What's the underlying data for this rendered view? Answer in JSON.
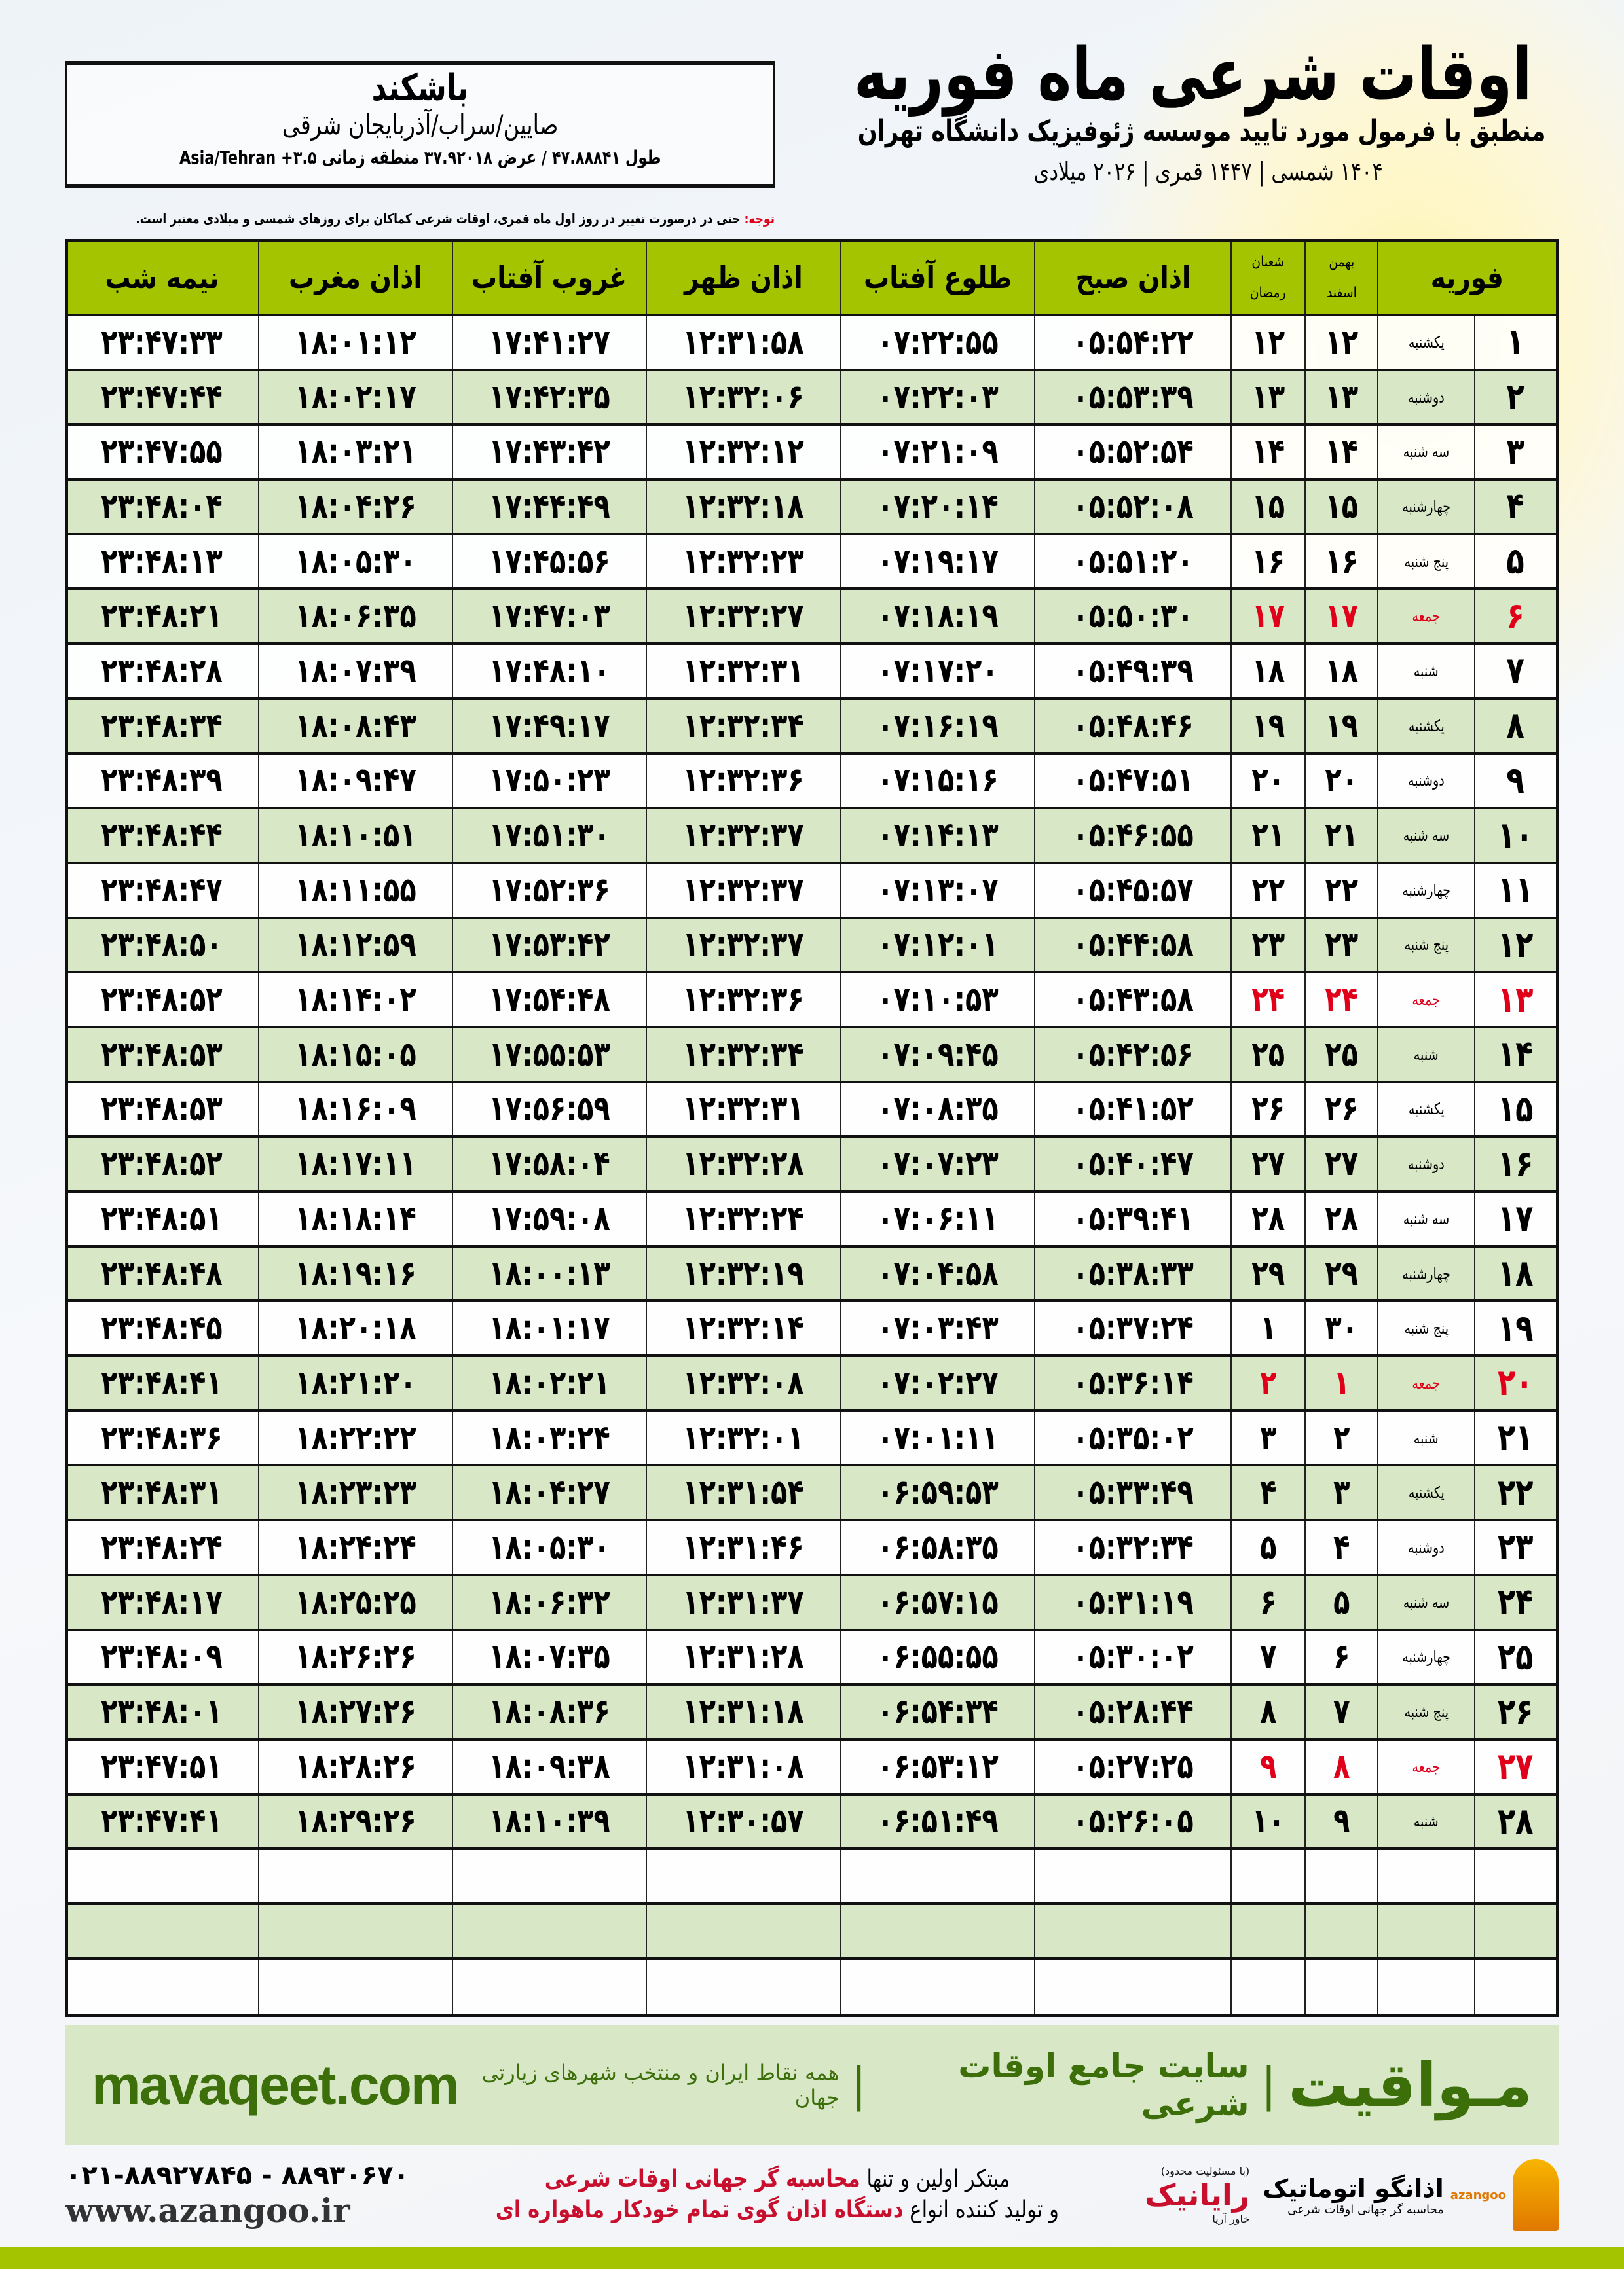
{
  "location": {
    "city": "باشکند",
    "province": "صایین/سراب/آذربایجان شرقی",
    "coordinates": "طول ۴۷.۸۸۸۴۱ / عرض ۳۷.۹۲۰۱۸ منطقه زمانی Asia/Tehran +۳.۵"
  },
  "header": {
    "title": "اوقات شرعی ماه فوریه",
    "subtitle": "منطبق با فرمول مورد تایید موسسه ژئوفیزیک دانشگاه تهران",
    "years": "۱۴۰۴ شمسی | ۱۴۴۷ قمری | ۲۰۲۶ میلادی"
  },
  "note": {
    "label": "توجه:",
    "text": " حتی در درصورت تغییر در روز اول ماه قمری، اوقات شرعی کماکان برای روزهای شمسی و میلادی معتبر است."
  },
  "colors": {
    "header_green": "#a5c400",
    "row_alt": "#d8e8c6",
    "holiday": "#e0001a",
    "brand_green": "#3c6e0a"
  },
  "table": {
    "headers": {
      "month": "فوریه",
      "bahman": "بهمن",
      "esfand": "اسفند",
      "shaban": "شعبان",
      "ramadan": "رمضان",
      "fajr": "اذان صبح",
      "sunrise": "طلوع آفتاب",
      "dhuhr": "اذان ظهر",
      "sunset": "غروب آفتاب",
      "maghrib": "اذان مغرب",
      "midnight": "نیمه شب"
    },
    "rows": [
      {
        "day": "۱",
        "weekday": "یکشنبه",
        "shamsi": "۱۲",
        "qamari": "۱۲",
        "fajr": "۰۵:۵۴:۲۲",
        "sunrise": "۰۷:۲۲:۵۵",
        "dhuhr": "۱۲:۳۱:۵۸",
        "sunset": "۱۷:۴۱:۲۷",
        "maghrib": "۱۸:۰۱:۱۲",
        "midnight": "۲۳:۴۷:۳۳",
        "holiday": false
      },
      {
        "day": "۲",
        "weekday": "دوشنبه",
        "shamsi": "۱۳",
        "qamari": "۱۳",
        "fajr": "۰۵:۵۳:۳۹",
        "sunrise": "۰۷:۲۲:۰۳",
        "dhuhr": "۱۲:۳۲:۰۶",
        "sunset": "۱۷:۴۲:۳۵",
        "maghrib": "۱۸:۰۲:۱۷",
        "midnight": "۲۳:۴۷:۴۴",
        "holiday": false
      },
      {
        "day": "۳",
        "weekday": "سه شنبه",
        "shamsi": "۱۴",
        "qamari": "۱۴",
        "fajr": "۰۵:۵۲:۵۴",
        "sunrise": "۰۷:۲۱:۰۹",
        "dhuhr": "۱۲:۳۲:۱۲",
        "sunset": "۱۷:۴۳:۴۲",
        "maghrib": "۱۸:۰۳:۲۱",
        "midnight": "۲۳:۴۷:۵۵",
        "holiday": false
      },
      {
        "day": "۴",
        "weekday": "چهارشنبه",
        "shamsi": "۱۵",
        "qamari": "۱۵",
        "fajr": "۰۵:۵۲:۰۸",
        "sunrise": "۰۷:۲۰:۱۴",
        "dhuhr": "۱۲:۳۲:۱۸",
        "sunset": "۱۷:۴۴:۴۹",
        "maghrib": "۱۸:۰۴:۲۶",
        "midnight": "۲۳:۴۸:۰۴",
        "holiday": false
      },
      {
        "day": "۵",
        "weekday": "پنج شنبه",
        "shamsi": "۱۶",
        "qamari": "۱۶",
        "fajr": "۰۵:۵۱:۲۰",
        "sunrise": "۰۷:۱۹:۱۷",
        "dhuhr": "۱۲:۳۲:۲۳",
        "sunset": "۱۷:۴۵:۵۶",
        "maghrib": "۱۸:۰۵:۳۰",
        "midnight": "۲۳:۴۸:۱۳",
        "holiday": false
      },
      {
        "day": "۶",
        "weekday": "جمعه",
        "shamsi": "۱۷",
        "qamari": "۱۷",
        "fajr": "۰۵:۵۰:۳۰",
        "sunrise": "۰۷:۱۸:۱۹",
        "dhuhr": "۱۲:۳۲:۲۷",
        "sunset": "۱۷:۴۷:۰۳",
        "maghrib": "۱۸:۰۶:۳۵",
        "midnight": "۲۳:۴۸:۲۱",
        "holiday": true
      },
      {
        "day": "۷",
        "weekday": "شنبه",
        "shamsi": "۱۸",
        "qamari": "۱۸",
        "fajr": "۰۵:۴۹:۳۹",
        "sunrise": "۰۷:۱۷:۲۰",
        "dhuhr": "۱۲:۳۲:۳۱",
        "sunset": "۱۷:۴۸:۱۰",
        "maghrib": "۱۸:۰۷:۳۹",
        "midnight": "۲۳:۴۸:۲۸",
        "holiday": false
      },
      {
        "day": "۸",
        "weekday": "یکشنبه",
        "shamsi": "۱۹",
        "qamari": "۱۹",
        "fajr": "۰۵:۴۸:۴۶",
        "sunrise": "۰۷:۱۶:۱۹",
        "dhuhr": "۱۲:۳۲:۳۴",
        "sunset": "۱۷:۴۹:۱۷",
        "maghrib": "۱۸:۰۸:۴۳",
        "midnight": "۲۳:۴۸:۳۴",
        "holiday": false
      },
      {
        "day": "۹",
        "weekday": "دوشنبه",
        "shamsi": "۲۰",
        "qamari": "۲۰",
        "fajr": "۰۵:۴۷:۵۱",
        "sunrise": "۰۷:۱۵:۱۶",
        "dhuhr": "۱۲:۳۲:۳۶",
        "sunset": "۱۷:۵۰:۲۳",
        "maghrib": "۱۸:۰۹:۴۷",
        "midnight": "۲۳:۴۸:۳۹",
        "holiday": false
      },
      {
        "day": "۱۰",
        "weekday": "سه شنبه",
        "shamsi": "۲۱",
        "qamari": "۲۱",
        "fajr": "۰۵:۴۶:۵۵",
        "sunrise": "۰۷:۱۴:۱۳",
        "dhuhr": "۱۲:۳۲:۳۷",
        "sunset": "۱۷:۵۱:۳۰",
        "maghrib": "۱۸:۱۰:۵۱",
        "midnight": "۲۳:۴۸:۴۴",
        "holiday": false
      },
      {
        "day": "۱۱",
        "weekday": "چهارشنبه",
        "shamsi": "۲۲",
        "qamari": "۲۲",
        "fajr": "۰۵:۴۵:۵۷",
        "sunrise": "۰۷:۱۳:۰۷",
        "dhuhr": "۱۲:۳۲:۳۷",
        "sunset": "۱۷:۵۲:۳۶",
        "maghrib": "۱۸:۱۱:۵۵",
        "midnight": "۲۳:۴۸:۴۷",
        "holiday": false
      },
      {
        "day": "۱۲",
        "weekday": "پنج شنبه",
        "shamsi": "۲۳",
        "qamari": "۲۳",
        "fajr": "۰۵:۴۴:۵۸",
        "sunrise": "۰۷:۱۲:۰۱",
        "dhuhr": "۱۲:۳۲:۳۷",
        "sunset": "۱۷:۵۳:۴۲",
        "maghrib": "۱۸:۱۲:۵۹",
        "midnight": "۲۳:۴۸:۵۰",
        "holiday": false
      },
      {
        "day": "۱۳",
        "weekday": "جمعه",
        "shamsi": "۲۴",
        "qamari": "۲۴",
        "fajr": "۰۵:۴۳:۵۸",
        "sunrise": "۰۷:۱۰:۵۳",
        "dhuhr": "۱۲:۳۲:۳۶",
        "sunset": "۱۷:۵۴:۴۸",
        "maghrib": "۱۸:۱۴:۰۲",
        "midnight": "۲۳:۴۸:۵۲",
        "holiday": true
      },
      {
        "day": "۱۴",
        "weekday": "شنبه",
        "shamsi": "۲۵",
        "qamari": "۲۵",
        "fajr": "۰۵:۴۲:۵۶",
        "sunrise": "۰۷:۰۹:۴۵",
        "dhuhr": "۱۲:۳۲:۳۴",
        "sunset": "۱۷:۵۵:۵۳",
        "maghrib": "۱۸:۱۵:۰۵",
        "midnight": "۲۳:۴۸:۵۳",
        "holiday": false
      },
      {
        "day": "۱۵",
        "weekday": "یکشنبه",
        "shamsi": "۲۶",
        "qamari": "۲۶",
        "fajr": "۰۵:۴۱:۵۲",
        "sunrise": "۰۷:۰۸:۳۵",
        "dhuhr": "۱۲:۳۲:۳۱",
        "sunset": "۱۷:۵۶:۵۹",
        "maghrib": "۱۸:۱۶:۰۹",
        "midnight": "۲۳:۴۸:۵۳",
        "holiday": false
      },
      {
        "day": "۱۶",
        "weekday": "دوشنبه",
        "shamsi": "۲۷",
        "qamari": "۲۷",
        "fajr": "۰۵:۴۰:۴۷",
        "sunrise": "۰۷:۰۷:۲۳",
        "dhuhr": "۱۲:۳۲:۲۸",
        "sunset": "۱۷:۵۸:۰۴",
        "maghrib": "۱۸:۱۷:۱۱",
        "midnight": "۲۳:۴۸:۵۲",
        "holiday": false
      },
      {
        "day": "۱۷",
        "weekday": "سه شنبه",
        "shamsi": "۲۸",
        "qamari": "۲۸",
        "fajr": "۰۵:۳۹:۴۱",
        "sunrise": "۰۷:۰۶:۱۱",
        "dhuhr": "۱۲:۳۲:۲۴",
        "sunset": "۱۷:۵۹:۰۸",
        "maghrib": "۱۸:۱۸:۱۴",
        "midnight": "۲۳:۴۸:۵۱",
        "holiday": false
      },
      {
        "day": "۱۸",
        "weekday": "چهارشنبه",
        "shamsi": "۲۹",
        "qamari": "۲۹",
        "fajr": "۰۵:۳۸:۳۳",
        "sunrise": "۰۷:۰۴:۵۸",
        "dhuhr": "۱۲:۳۲:۱۹",
        "sunset": "۱۸:۰۰:۱۳",
        "maghrib": "۱۸:۱۹:۱۶",
        "midnight": "۲۳:۴۸:۴۸",
        "holiday": false
      },
      {
        "day": "۱۹",
        "weekday": "پنج شنبه",
        "shamsi": "۳۰",
        "qamari": "۱",
        "fajr": "۰۵:۳۷:۲۴",
        "sunrise": "۰۷:۰۳:۴۳",
        "dhuhr": "۱۲:۳۲:۱۴",
        "sunset": "۱۸:۰۱:۱۷",
        "maghrib": "۱۸:۲۰:۱۸",
        "midnight": "۲۳:۴۸:۴۵",
        "holiday": false
      },
      {
        "day": "۲۰",
        "weekday": "جمعه",
        "shamsi": "۱",
        "qamari": "۲",
        "fajr": "۰۵:۳۶:۱۴",
        "sunrise": "۰۷:۰۲:۲۷",
        "dhuhr": "۱۲:۳۲:۰۸",
        "sunset": "۱۸:۰۲:۲۱",
        "maghrib": "۱۸:۲۱:۲۰",
        "midnight": "۲۳:۴۸:۴۱",
        "holiday": true
      },
      {
        "day": "۲۱",
        "weekday": "شنبه",
        "shamsi": "۲",
        "qamari": "۳",
        "fajr": "۰۵:۳۵:۰۲",
        "sunrise": "۰۷:۰۱:۱۱",
        "dhuhr": "۱۲:۳۲:۰۱",
        "sunset": "۱۸:۰۳:۲۴",
        "maghrib": "۱۸:۲۲:۲۲",
        "midnight": "۲۳:۴۸:۳۶",
        "holiday": false
      },
      {
        "day": "۲۲",
        "weekday": "یکشنبه",
        "shamsi": "۳",
        "qamari": "۴",
        "fajr": "۰۵:۳۳:۴۹",
        "sunrise": "۰۶:۵۹:۵۳",
        "dhuhr": "۱۲:۳۱:۵۴",
        "sunset": "۱۸:۰۴:۲۷",
        "maghrib": "۱۸:۲۳:۲۳",
        "midnight": "۲۳:۴۸:۳۱",
        "holiday": false
      },
      {
        "day": "۲۳",
        "weekday": "دوشنبه",
        "shamsi": "۴",
        "qamari": "۵",
        "fajr": "۰۵:۳۲:۳۴",
        "sunrise": "۰۶:۵۸:۳۵",
        "dhuhr": "۱۲:۳۱:۴۶",
        "sunset": "۱۸:۰۵:۳۰",
        "maghrib": "۱۸:۲۴:۲۴",
        "midnight": "۲۳:۴۸:۲۴",
        "holiday": false
      },
      {
        "day": "۲۴",
        "weekday": "سه شنبه",
        "shamsi": "۵",
        "qamari": "۶",
        "fajr": "۰۵:۳۱:۱۹",
        "sunrise": "۰۶:۵۷:۱۵",
        "dhuhr": "۱۲:۳۱:۳۷",
        "sunset": "۱۸:۰۶:۳۲",
        "maghrib": "۱۸:۲۵:۲۵",
        "midnight": "۲۳:۴۸:۱۷",
        "holiday": false
      },
      {
        "day": "۲۵",
        "weekday": "چهارشنبه",
        "shamsi": "۶",
        "qamari": "۷",
        "fajr": "۰۵:۳۰:۰۲",
        "sunrise": "۰۶:۵۵:۵۵",
        "dhuhr": "۱۲:۳۱:۲۸",
        "sunset": "۱۸:۰۷:۳۵",
        "maghrib": "۱۸:۲۶:۲۶",
        "midnight": "۲۳:۴۸:۰۹",
        "holiday": false
      },
      {
        "day": "۲۶",
        "weekday": "پنج شنبه",
        "shamsi": "۷",
        "qamari": "۸",
        "fajr": "۰۵:۲۸:۴۴",
        "sunrise": "۰۶:۵۴:۳۴",
        "dhuhr": "۱۲:۳۱:۱۸",
        "sunset": "۱۸:۰۸:۳۶",
        "maghrib": "۱۸:۲۷:۲۶",
        "midnight": "۲۳:۴۸:۰۱",
        "holiday": false
      },
      {
        "day": "۲۷",
        "weekday": "جمعه",
        "shamsi": "۸",
        "qamari": "۹",
        "fajr": "۰۵:۲۷:۲۵",
        "sunrise": "۰۶:۵۳:۱۲",
        "dhuhr": "۱۲:۳۱:۰۸",
        "sunset": "۱۸:۰۹:۳۸",
        "maghrib": "۱۸:۲۸:۲۶",
        "midnight": "۲۳:۴۷:۵۱",
        "holiday": true
      },
      {
        "day": "۲۸",
        "weekday": "شنبه",
        "shamsi": "۹",
        "qamari": "۱۰",
        "fajr": "۰۵:۲۶:۰۵",
        "sunrise": "۰۶:۵۱:۴۹",
        "dhuhr": "۱۲:۳۰:۵۷",
        "sunset": "۱۸:۱۰:۳۹",
        "maghrib": "۱۸:۲۹:۲۶",
        "midnight": "۲۳:۴۷:۴۱",
        "holiday": false
      }
    ]
  },
  "band": {
    "brand": "مـواقیت",
    "separator": "|",
    "slogan": "سایت جامع اوقات شرعی",
    "separator2": "|",
    "sub": "همه نقاط ایران و منتخب شهرهای زیارتی جهان",
    "site": "mavaqeet.com"
  },
  "footer": {
    "logo1": {
      "name": "اذانگو اتوماتیک",
      "tagline": "محاسبه گر جهانی اوقات شرعی",
      "latin": "azangoo"
    },
    "logo2": {
      "top": "(با مسئولیت محدود)",
      "name": "رایانیک",
      "side": "خاور آریا"
    },
    "promo": {
      "line1_a": "مبتکر اولین و تنها ",
      "line1_b": "محاسبه گر جهانی اوقات شرعی",
      "line2_a": "و تولید کننده انواع ",
      "line2_b": "دستگاه اذان گوی تمام خودکار ماهواره ای"
    },
    "phone": "۰۲۱-۸۸۹۲۷۸۴۵ - ۸۸۹۳۰۶۷۰",
    "website": "www.azangoo.ir"
  }
}
